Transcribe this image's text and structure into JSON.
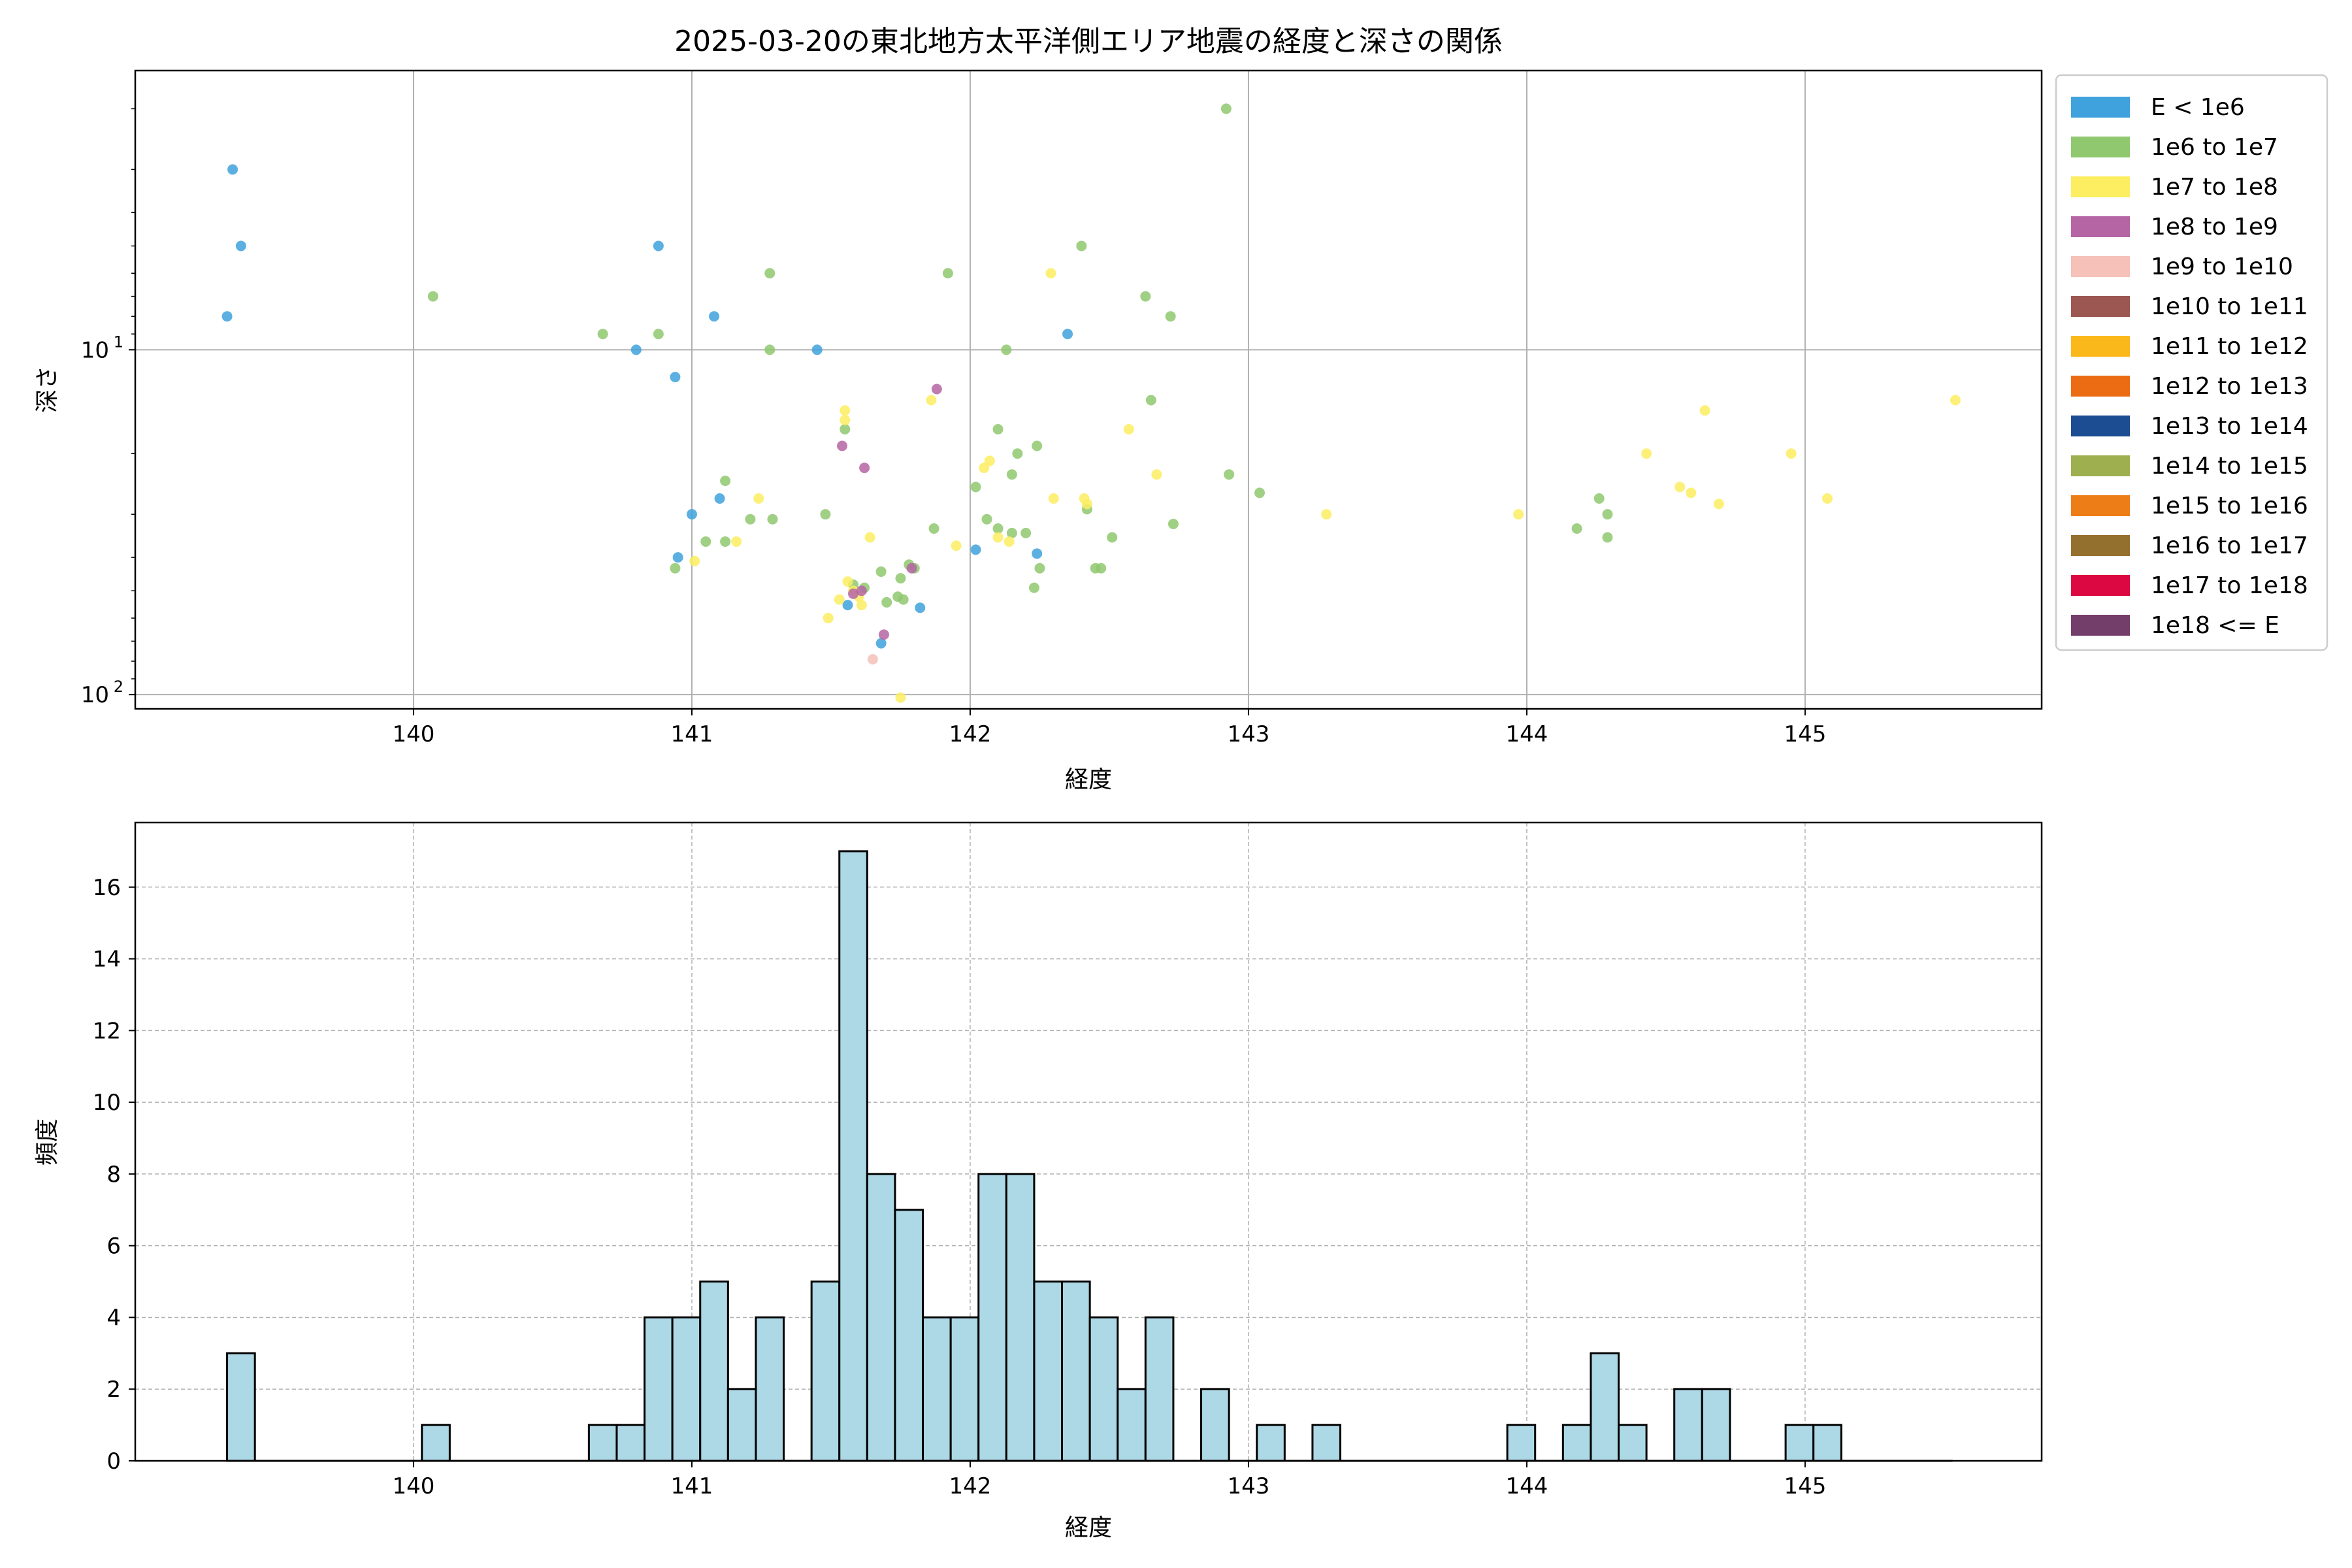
{
  "chart_data": [
    {
      "type": "scatter",
      "title": "2025-03-20の東北地方太平洋側エリア地震の経度と深さの関係",
      "xlabel": "経度",
      "ylabel": "深さ",
      "xlim": [
        139.0,
        145.85
      ],
      "ylim_log_inverted": [
        1.55,
        110
      ],
      "y_scale": "log (inverted)",
      "x_ticks": [
        140,
        141,
        142,
        143,
        144,
        145
      ],
      "y_ticks": [
        {
          "value": 10,
          "label": "10",
          "sup": "1"
        },
        {
          "value": 100,
          "label": "10",
          "sup": "2"
        }
      ],
      "grid": true,
      "legend_placement": "outside right",
      "legend": [
        {
          "label": "E < 1e6",
          "color": "#3fa2dc"
        },
        {
          "label": "1e6 to 1e7",
          "color": "#8fc86e"
        },
        {
          "label": "1e7 to 1e8",
          "color": "#fced61"
        },
        {
          "label": "1e8 to 1e9",
          "color": "#b565a3"
        },
        {
          "label": "1e9 to 1e10",
          "color": "#f5c1b8"
        },
        {
          "label": "1e10 to 1e11",
          "color": "#9d5752"
        },
        {
          "label": "1e11 to 1e12",
          "color": "#fab81a"
        },
        {
          "label": "1e12 to 1e13",
          "color": "#ec6c13"
        },
        {
          "label": "1e13 to 1e14",
          "color": "#1c4c91"
        },
        {
          "label": "1e14 to 1e15",
          "color": "#9daf4e"
        },
        {
          "label": "1e15 to 1e16",
          "color": "#ed7d16"
        },
        {
          "label": "1e16 to 1e17",
          "color": "#94702e"
        },
        {
          "label": "1e17 to 1e18",
          "color": "#dc0841"
        },
        {
          "label": "1e18 <= E",
          "color": "#743e6a"
        }
      ],
      "series": [
        {
          "class": 0,
          "points": [
            [
              139.35,
              3.0
            ],
            [
              139.38,
              5.0
            ],
            [
              139.33,
              8.0
            ],
            [
              140.88,
              5.0
            ],
            [
              141.08,
              8.0
            ],
            [
              140.8,
              10.0
            ],
            [
              140.94,
              12.0
            ],
            [
              141.0,
              30.0
            ],
            [
              141.1,
              27.0
            ],
            [
              140.95,
              40.0
            ],
            [
              141.45,
              10.0
            ],
            [
              142.35,
              9.0
            ],
            [
              142.02,
              38.0
            ],
            [
              142.24,
              39.0
            ],
            [
              141.56,
              55.0
            ],
            [
              141.82,
              56.0
            ],
            [
              141.68,
              71.0
            ]
          ]
        },
        {
          "class": 1,
          "points": [
            [
              142.92,
              2.0
            ],
            [
              142.4,
              5.0
            ],
            [
              140.07,
              7.0
            ],
            [
              141.28,
              6.0
            ],
            [
              141.92,
              6.0
            ],
            [
              142.63,
              7.0
            ],
            [
              142.72,
              8.0
            ],
            [
              140.68,
              9.0
            ],
            [
              140.88,
              9.0
            ],
            [
              141.28,
              10.0
            ],
            [
              142.13,
              10.0
            ],
            [
              142.65,
              14.0
            ],
            [
              141.55,
              17.0
            ],
            [
              142.1,
              17.0
            ],
            [
              142.17,
              20.0
            ],
            [
              142.24,
              19.0
            ],
            [
              142.93,
              23.0
            ],
            [
              143.04,
              26.0
            ],
            [
              141.12,
              24.0
            ],
            [
              142.15,
              23.0
            ],
            [
              142.02,
              25.0
            ],
            [
              142.42,
              29.0
            ],
            [
              141.48,
              30.0
            ],
            [
              141.29,
              31.0
            ],
            [
              141.21,
              31.0
            ],
            [
              142.06,
              31.0
            ],
            [
              142.1,
              33.0
            ],
            [
              142.15,
              34.0
            ],
            [
              142.2,
              34.0
            ],
            [
              142.73,
              32.0
            ],
            [
              142.51,
              35.0
            ],
            [
              141.12,
              36.0
            ],
            [
              141.05,
              36.0
            ],
            [
              141.87,
              33.0
            ],
            [
              140.94,
              43.0
            ],
            [
              141.78,
              42.0
            ],
            [
              141.8,
              43.0
            ],
            [
              141.68,
              44.0
            ],
            [
              141.75,
              46.0
            ],
            [
              141.58,
              48.0
            ],
            [
              141.62,
              49.0
            ],
            [
              141.7,
              54.0
            ],
            [
              141.74,
              52.0
            ],
            [
              141.76,
              53.0
            ],
            [
              142.25,
              43.0
            ],
            [
              142.45,
              43.0
            ],
            [
              142.47,
              43.0
            ],
            [
              142.23,
              49.0
            ],
            [
              144.18,
              33.0
            ],
            [
              144.26,
              27.0
            ],
            [
              144.29,
              30.0
            ],
            [
              144.29,
              35.0
            ]
          ]
        },
        {
          "class": 2,
          "points": [
            [
              142.29,
              6.0
            ],
            [
              141.55,
              15.0
            ],
            [
              141.55,
              16.0
            ],
            [
              141.86,
              14.0
            ],
            [
              142.57,
              17.0
            ],
            [
              142.05,
              22.0
            ],
            [
              142.07,
              21.0
            ],
            [
              142.67,
              23.0
            ],
            [
              142.3,
              27.0
            ],
            [
              142.41,
              27.0
            ],
            [
              142.42,
              28.0
            ],
            [
              141.24,
              27.0
            ],
            [
              143.28,
              30.0
            ],
            [
              143.97,
              30.0
            ],
            [
              144.43,
              20.0
            ],
            [
              144.64,
              15.0
            ],
            [
              144.55,
              25.0
            ],
            [
              144.59,
              26.0
            ],
            [
              144.69,
              28.0
            ],
            [
              144.95,
              20.0
            ],
            [
              145.08,
              27.0
            ],
            [
              145.54,
              14.0
            ],
            [
              141.01,
              41.0
            ],
            [
              141.16,
              36.0
            ],
            [
              141.64,
              35.0
            ],
            [
              141.95,
              37.0
            ],
            [
              142.1,
              35.0
            ],
            [
              142.14,
              36.0
            ],
            [
              141.53,
              53.0
            ],
            [
              141.58,
              50.0
            ],
            [
              141.6,
              52.0
            ],
            [
              141.61,
              55.0
            ],
            [
              141.56,
              47.0
            ],
            [
              141.49,
              60.0
            ],
            [
              141.75,
              102.0
            ]
          ]
        },
        {
          "class": 3,
          "points": [
            [
              141.88,
              13.0
            ],
            [
              141.54,
              19.0
            ],
            [
              141.62,
              22.0
            ],
            [
              141.79,
              43.0
            ],
            [
              141.58,
              51.0
            ],
            [
              141.61,
              50.0
            ],
            [
              141.69,
              67.0
            ]
          ]
        },
        {
          "class": 4,
          "points": [
            [
              141.65,
              79.0
            ]
          ]
        }
      ]
    },
    {
      "type": "bar",
      "title": "",
      "xlabel": "経度",
      "ylabel": "頻度",
      "xlim": [
        139.0,
        145.85
      ],
      "ylim": [
        0,
        17.8
      ],
      "x_ticks": [
        140,
        141,
        142,
        143,
        144,
        145
      ],
      "y_ticks": [
        0,
        2,
        4,
        6,
        8,
        10,
        12,
        14,
        16
      ],
      "grid": true,
      "bar_color": "#add8e6",
      "bin_start": 139.33,
      "bin_width": 0.1,
      "counts": [
        3,
        0,
        0,
        0,
        0,
        0,
        0,
        1,
        0,
        0,
        0,
        0,
        0,
        1,
        1,
        4,
        4,
        5,
        2,
        4,
        0,
        5,
        17,
        8,
        7,
        4,
        4,
        8,
        8,
        5,
        5,
        4,
        2,
        4,
        0,
        2,
        0,
        1,
        0,
        1,
        0,
        0,
        0,
        0,
        0,
        0,
        1,
        0,
        1,
        3,
        1,
        0,
        2,
        2,
        0,
        0,
        1,
        1,
        0,
        0,
        0,
        0
      ]
    }
  ]
}
